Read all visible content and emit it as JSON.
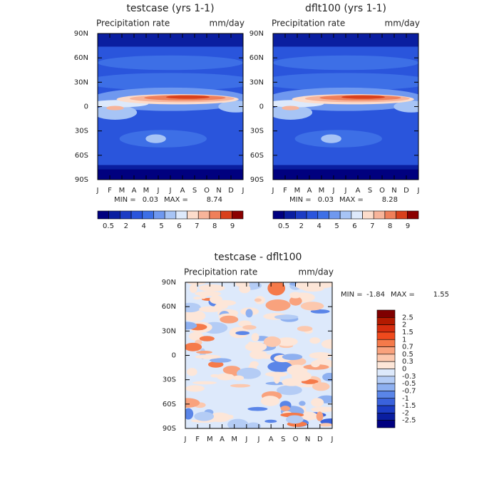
{
  "chart_data": [
    {
      "type": "contour",
      "title": "testcase (yrs 1-1)",
      "subtitle": "Precipitation rate",
      "units": "mm/day",
      "categories": [
        "J",
        "F",
        "M",
        "A",
        "M",
        "J",
        "J",
        "A",
        "S",
        "O",
        "N",
        "D",
        "J"
      ],
      "ylim": [
        -90,
        90
      ],
      "yticks": [
        {
          "value": 90,
          "label": "90N"
        },
        {
          "value": 60,
          "label": "60N"
        },
        {
          "value": 30,
          "label": "30N"
        },
        0,
        {
          "value": -30,
          "label": "30S"
        },
        {
          "value": -60,
          "label": "60S"
        },
        {
          "value": -90,
          "label": "90S"
        }
      ],
      "min_label": "MIN =",
      "min": 0.03,
      "max_label": "MAX =",
      "max": 8.74,
      "colorbar": {
        "orientation": "horizontal",
        "labels": [
          0.5,
          2,
          4,
          5,
          6,
          7,
          8,
          9
        ],
        "colors": [
          "#00007f",
          "#0a1ea0",
          "#1c3cc4",
          "#2a55dc",
          "#3d6fe6",
          "#6f98ef",
          "#a7c4f5",
          "#dde9fb",
          "#fcdccb",
          "#f7b49a",
          "#ef7f5a",
          "#d9401c",
          "#8b0000"
        ]
      }
    },
    {
      "type": "contour",
      "title": "dflt100 (yrs 1-1)",
      "subtitle": "Precipitation rate",
      "units": "mm/day",
      "categories": [
        "J",
        "F",
        "M",
        "A",
        "M",
        "J",
        "J",
        "A",
        "S",
        "O",
        "N",
        "D",
        "J"
      ],
      "ylim": [
        -90,
        90
      ],
      "yticks": [
        {
          "value": 90,
          "label": "90N"
        },
        {
          "value": 60,
          "label": "60N"
        },
        {
          "value": 30,
          "label": "30N"
        },
        0,
        {
          "value": -30,
          "label": "30S"
        },
        {
          "value": -60,
          "label": "60S"
        },
        {
          "value": -90,
          "label": "90S"
        }
      ],
      "min_label": "MIN =",
      "min": 0.03,
      "max_label": "MAX =",
      "max": 8.28,
      "colorbar": {
        "orientation": "horizontal",
        "labels": [
          0.5,
          2,
          4,
          5,
          6,
          7,
          8,
          9
        ],
        "colors": [
          "#00007f",
          "#0a1ea0",
          "#1c3cc4",
          "#2a55dc",
          "#3d6fe6",
          "#6f98ef",
          "#a7c4f5",
          "#dde9fb",
          "#fcdccb",
          "#f7b49a",
          "#ef7f5a",
          "#d9401c",
          "#8b0000"
        ]
      }
    },
    {
      "type": "contour",
      "title": "testcase - dflt100",
      "subtitle": "Precipitation rate",
      "units": "mm/day",
      "categories": [
        "J",
        "F",
        "M",
        "A",
        "M",
        "J",
        "J",
        "A",
        "S",
        "O",
        "N",
        "D",
        "J"
      ],
      "ylim": [
        -90,
        90
      ],
      "yticks": [
        {
          "value": 90,
          "label": "90N"
        },
        {
          "value": 60,
          "label": "60N"
        },
        {
          "value": 30,
          "label": "30N"
        },
        0,
        {
          "value": -30,
          "label": "30S"
        },
        {
          "value": -60,
          "label": "60S"
        },
        {
          "value": -90,
          "label": "90S"
        }
      ],
      "min_label": "MIN =",
      "min": -1.84,
      "max_label": "MAX =",
      "max": 1.55,
      "colorbar": {
        "orientation": "vertical",
        "labels": [
          2.5,
          2,
          1.5,
          1,
          0.7,
          0.5,
          0.3,
          0,
          -0.3,
          -0.5,
          -0.7,
          -1,
          -1.5,
          -2,
          -2.5
        ],
        "colors": [
          "#7f0000",
          "#b31a00",
          "#d62d0e",
          "#ef4a1d",
          "#f57a4a",
          "#f9a27d",
          "#fcc8ae",
          "#fde6d8",
          "#dde9fb",
          "#b4ccf5",
          "#8eb0f0",
          "#5a85e8",
          "#3a62dc",
          "#1c3cc4",
          "#0a1ea0",
          "#000080"
        ]
      }
    }
  ]
}
